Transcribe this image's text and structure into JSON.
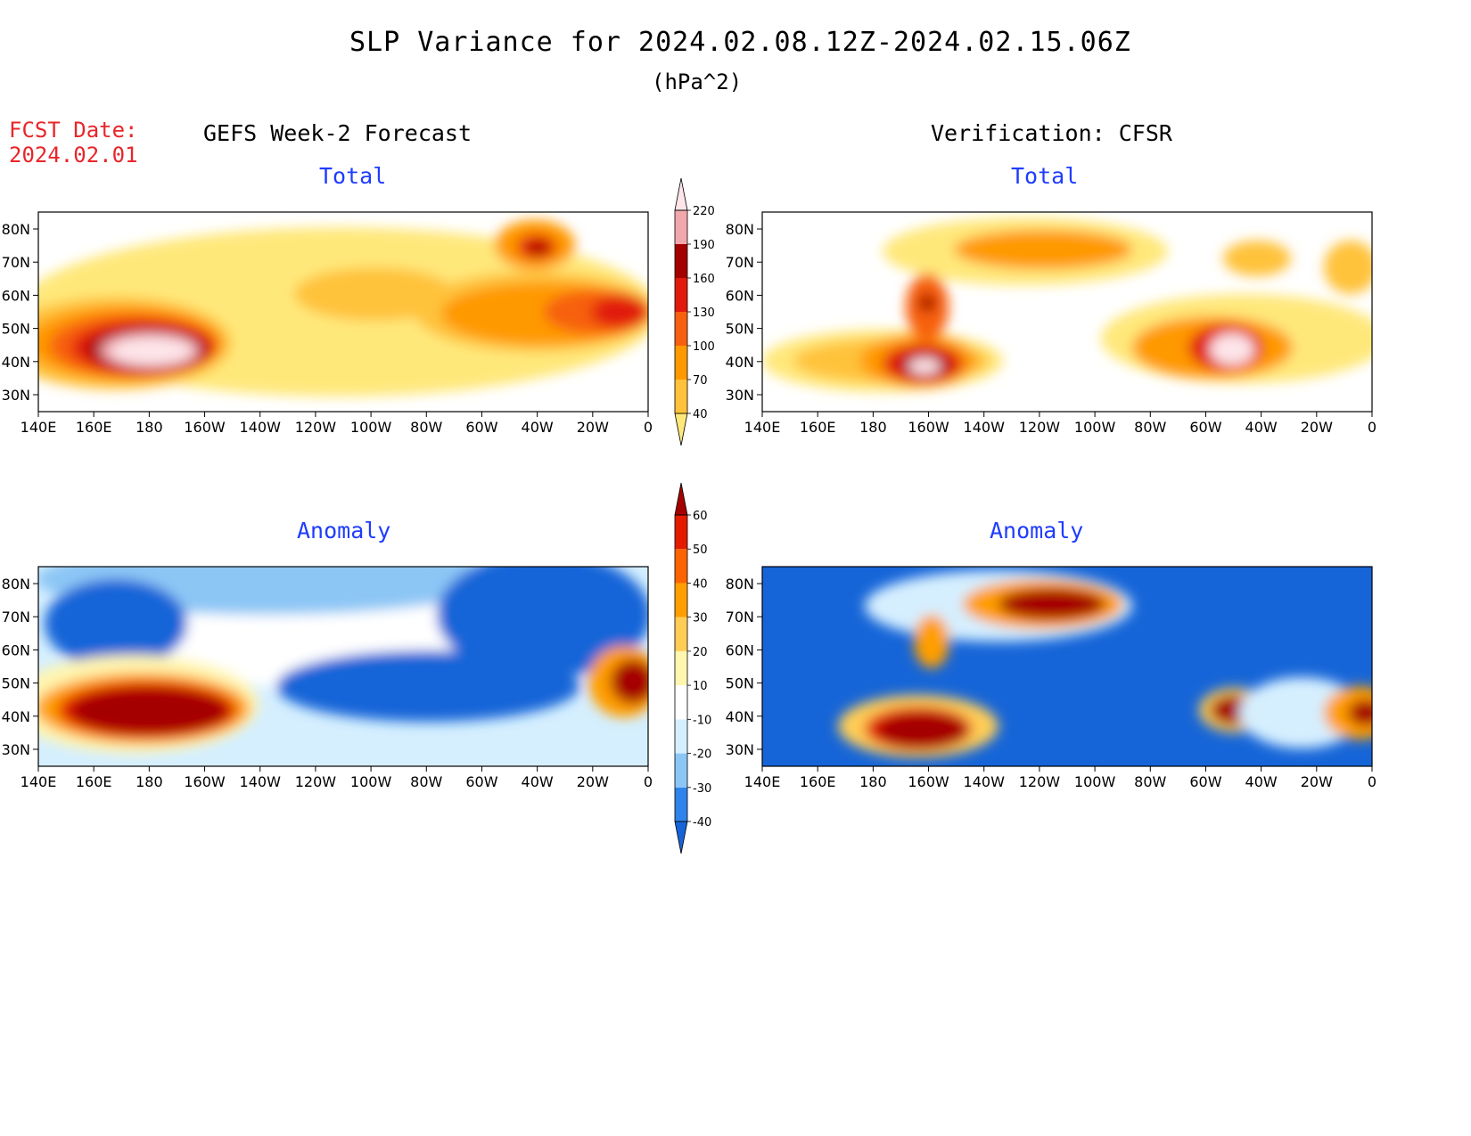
{
  "title": "SLP Variance for 2024.02.08.12Z-2024.02.15.06Z",
  "units": "(hPa^2)",
  "fcst_date_label": "FCST Date:",
  "fcst_date_value": "2024.02.01",
  "left_header": "GEFS Week-2 Forecast",
  "right_header": "Verification: CFSR",
  "panels": [
    {
      "id": "gefs-total",
      "title": "Total"
    },
    {
      "id": "cfsr-total",
      "title": "Total"
    },
    {
      "id": "gefs-anomaly",
      "title": "Anomaly"
    },
    {
      "id": "cfsr-anomaly",
      "title": "Anomaly"
    }
  ],
  "lon_ticks": [
    "140E",
    "160E",
    "180",
    "160W",
    "140W",
    "120W",
    "100W",
    "80W",
    "60W",
    "40W",
    "20W",
    "0"
  ],
  "lat_ticks": [
    "80N",
    "70N",
    "60N",
    "50N",
    "40N",
    "30N"
  ],
  "total_colorbar": {
    "levels": [
      "40",
      "70",
      "100",
      "130",
      "160",
      "190",
      "220"
    ],
    "colors": [
      "#ffe87a",
      "#ffc23a",
      "#ff9900",
      "#f7600f",
      "#e11a0d",
      "#a50000",
      "#f2a7ad",
      "#fde5ea"
    ]
  },
  "anomaly_colorbar": {
    "levels": [
      "-40",
      "-30",
      "-20",
      "-10",
      "10",
      "20",
      "30",
      "40",
      "50",
      "60"
    ],
    "colors": [
      "#1665d8",
      "#2f83eb",
      "#8cc6f5",
      "#d5efff",
      "#ffffff",
      "#fff6b0",
      "#ffcd56",
      "#ff9e00",
      "#fb6400",
      "#e31c00",
      "#a50000"
    ]
  },
  "colors": {
    "title_text": "#000000",
    "fcst_text": "#e8262a",
    "panel_title_text": "#1f3cff"
  }
}
